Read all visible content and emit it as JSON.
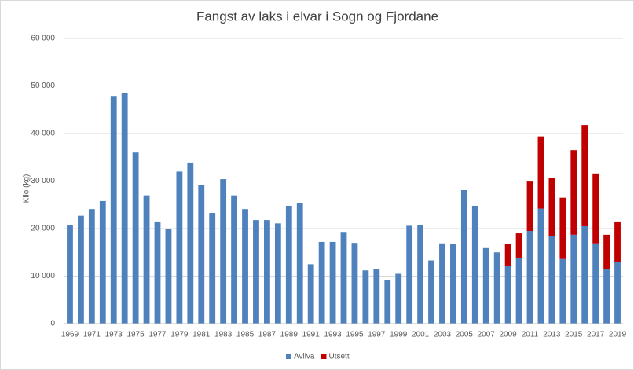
{
  "chart_data": {
    "type": "bar",
    "stacked": true,
    "title": "Fangst av laks i elvar i Sogn og Fjordane",
    "y_label": "Kilo (kg)",
    "categories": [
      "1969",
      null,
      "1971",
      null,
      "1973",
      null,
      "1975",
      null,
      "1977",
      null,
      "1979",
      null,
      "1981",
      null,
      "1983",
      null,
      "1985",
      null,
      "1987",
      null,
      "1989",
      null,
      "1991",
      null,
      "1993",
      null,
      "1995",
      null,
      "1997",
      null,
      "1999",
      null,
      "2001",
      null,
      "2003",
      null,
      "2005",
      null,
      "2007",
      null,
      "2009",
      null,
      "2011",
      null,
      "2013",
      null,
      "2015",
      null,
      "2017",
      null,
      "2019"
    ],
    "series": [
      {
        "name": "Avliva",
        "color": "#4f81bd",
        "values": [
          20800,
          22700,
          24100,
          25800,
          47900,
          48500,
          36000,
          27000,
          21500,
          19900,
          32000,
          33900,
          29100,
          23300,
          30400,
          27000,
          24100,
          21800,
          21800,
          21100,
          24800,
          25300,
          12500,
          17200,
          17200,
          19300,
          17000,
          11200,
          11500,
          9200,
          10500,
          20600,
          20800,
          13300,
          16900,
          16800,
          28100,
          24800,
          15900,
          15000,
          12200,
          13800,
          19500,
          24200,
          18400,
          13600,
          18700,
          20500,
          16900,
          11400,
          13000
        ]
      },
      {
        "name": "Utsett",
        "color": "#c00000",
        "values": [
          null,
          null,
          null,
          null,
          null,
          null,
          null,
          null,
          null,
          null,
          null,
          null,
          null,
          null,
          null,
          null,
          null,
          null,
          null,
          null,
          null,
          null,
          null,
          null,
          null,
          null,
          null,
          null,
          null,
          null,
          null,
          null,
          null,
          null,
          null,
          null,
          null,
          null,
          null,
          null,
          4500,
          5200,
          10400,
          15200,
          12200,
          12900,
          17800,
          21300,
          14700,
          7300,
          8500
        ]
      }
    ],
    "ylim": [
      0,
      60000
    ],
    "yticks": [
      0,
      {
        "value": 10000,
        "label": "10 000"
      },
      {
        "value": 20000,
        "label": "20 000"
      },
      {
        "value": 30000,
        "label": "30 000"
      },
      {
        "value": 40000,
        "label": "40 000"
      },
      {
        "value": 50000,
        "label": "50 000"
      },
      {
        "value": 60000,
        "label": "60 000"
      }
    ],
    "grid": true,
    "legend": "bottom"
  }
}
